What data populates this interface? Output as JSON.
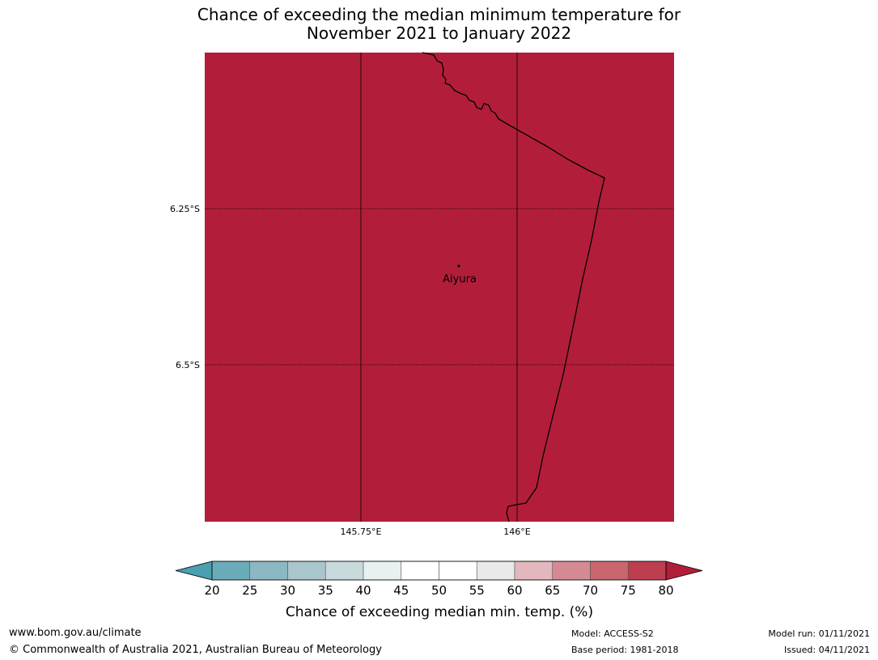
{
  "title": {
    "line1": "Chance of exceeding the median minimum temperature for",
    "line2": "November 2021 to January 2022"
  },
  "map": {
    "fill_color": "#b21e3a",
    "lat_labels": [
      "6.25°S",
      "6.5°S"
    ],
    "lon_labels": [
      "145.75°E",
      "146°E"
    ],
    "place": {
      "name": "Aiyura"
    }
  },
  "colorbar": {
    "label": "Chance of exceeding median min. temp. (%)",
    "ticks": [
      "20",
      "25",
      "30",
      "35",
      "40",
      "45",
      "50",
      "55",
      "60",
      "65",
      "70",
      "75",
      "80"
    ],
    "colors": [
      "#4a9fb0",
      "#6aabba",
      "#8cb8c4",
      "#a8c6cc",
      "#c9dadd",
      "#e8f0f2",
      "#ffffff",
      "#ffffff",
      "#e9e9e9",
      "#e2b7bd",
      "#d58a93",
      "#c9666f",
      "#bd3f4f",
      "#b21e3a"
    ]
  },
  "footer": {
    "website": "www.bom.gov.au/climate",
    "copyright": "© Commonwealth of Australia 2021, Australian Bureau of Meteorology",
    "model": "Model: ACCESS-S2",
    "base_period": "Base period: 1981-2018",
    "model_run": "Model run: 01/11/2021",
    "issued": "Issued: 04/11/2021"
  }
}
